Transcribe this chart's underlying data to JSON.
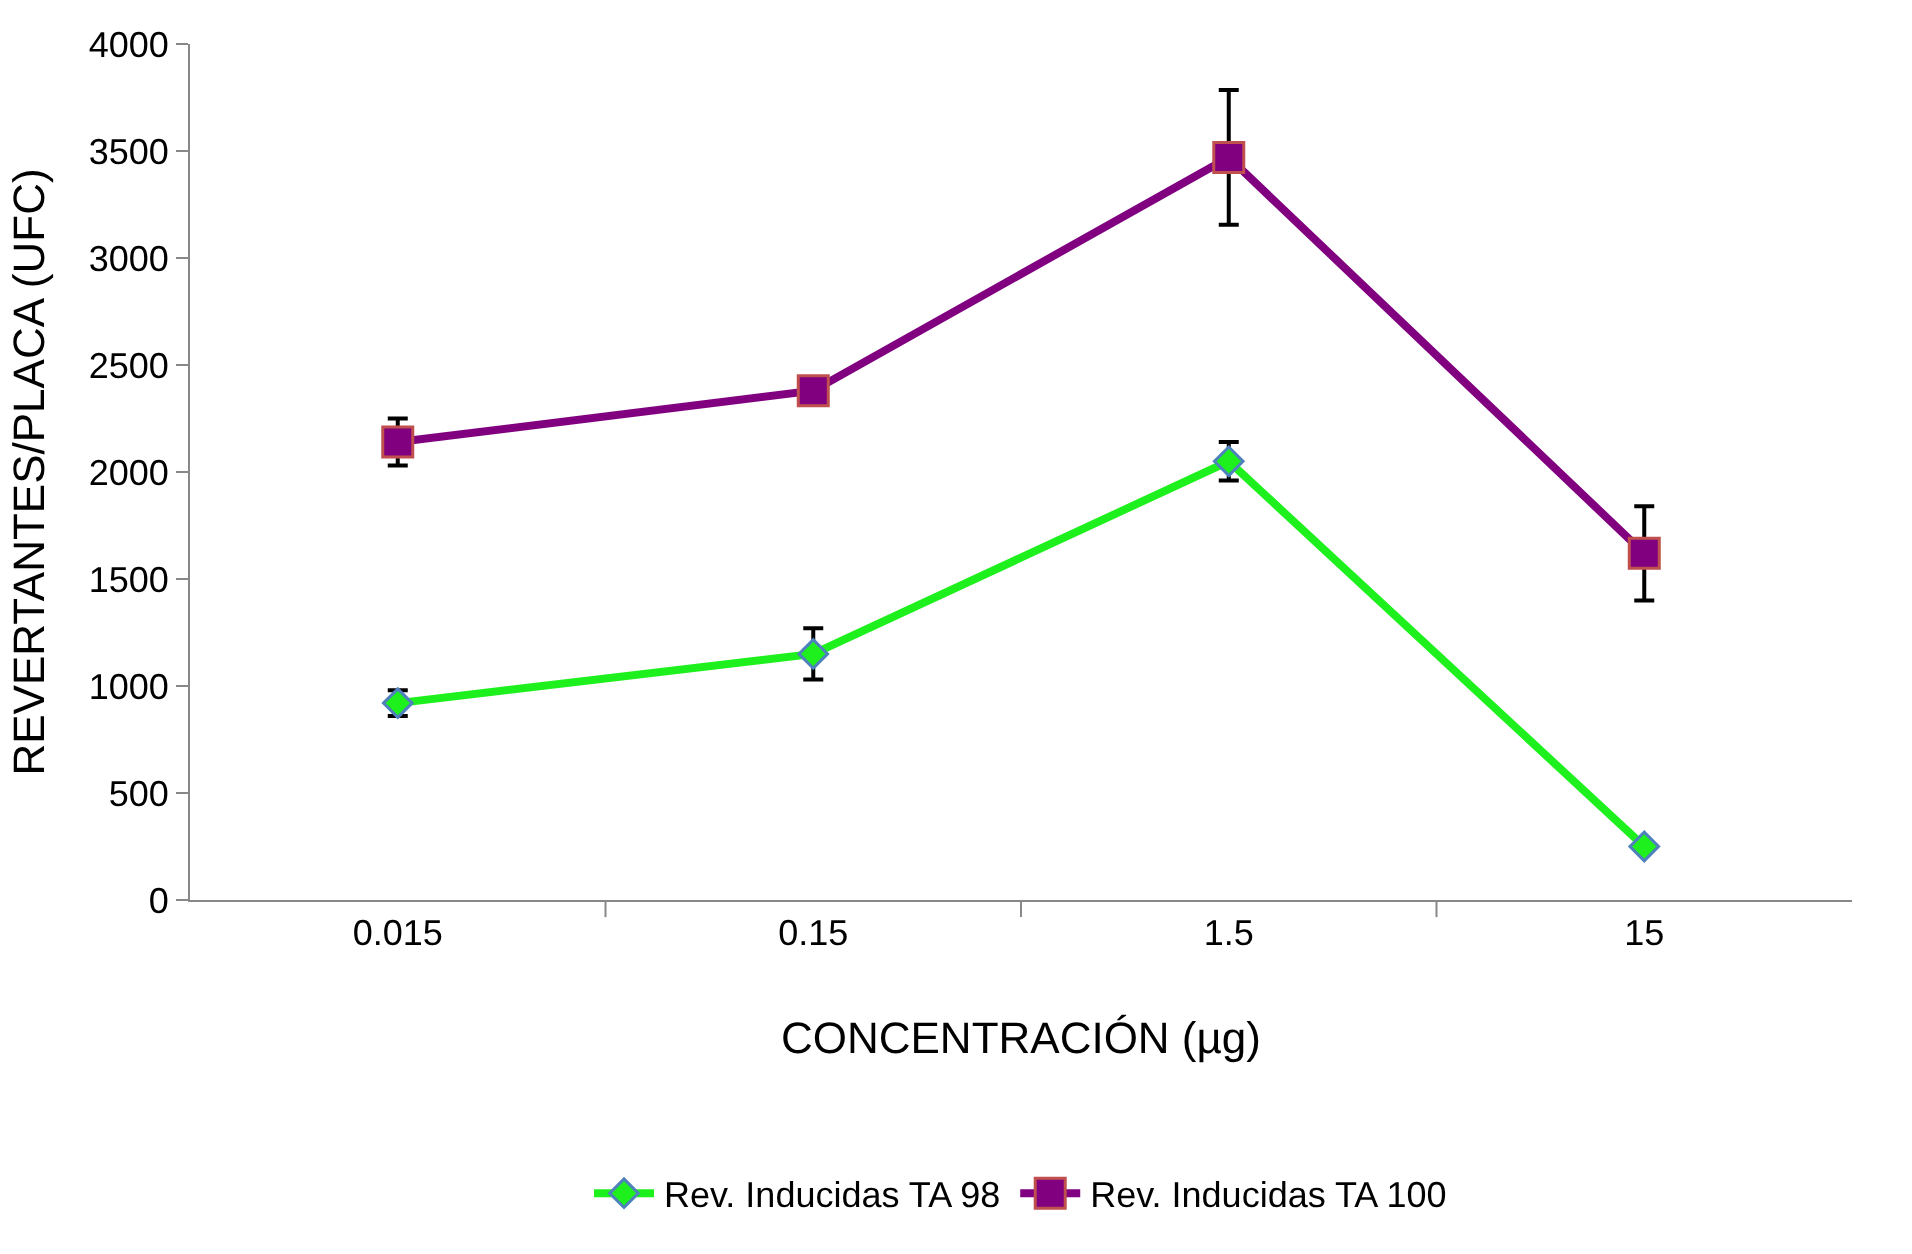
{
  "chart_data": {
    "type": "line",
    "xlabel": "CONCENTRACIÓN (µg)",
    "ylabel": "REVERTANTES/PLACA (UFC)",
    "categories": [
      "0.015",
      "0.15",
      "1.5",
      "15"
    ],
    "series": [
      {
        "name": "Rev. Inducidas TA 98",
        "color": "#1ef01e",
        "marker": "diamond",
        "values": [
          920,
          1150,
          2050,
          250
        ],
        "errors": [
          60,
          120,
          90,
          null
        ]
      },
      {
        "name": "Rev. Inducidas TA 100",
        "color": "#800080",
        "marker": "square",
        "values": [
          2140,
          2380,
          3470,
          1620
        ],
        "errors": [
          110,
          null,
          315,
          220
        ]
      }
    ],
    "ylim": [
      0,
      4000
    ],
    "yticks": [
      0,
      500,
      1000,
      1500,
      2000,
      2500,
      3000,
      3500,
      4000
    ],
    "legend": "bottom",
    "line_style": "solid"
  }
}
